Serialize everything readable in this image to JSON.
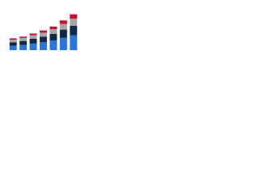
{
  "chart_data": {
    "type": "stacked-bar",
    "categories": [
      null,
      null,
      null,
      null,
      null,
      null,
      null
    ],
    "series": [
      {
        "color": "#2876dd",
        "values": [
          10,
          12,
          15,
          18,
          22,
          28,
          34
        ]
      },
      {
        "color": "#0e2a47",
        "values": [
          8,
          9,
          11,
          13,
          15,
          19,
          22
        ]
      },
      {
        "color": "#a6a6a6",
        "values": [
          6,
          7,
          8,
          9,
          11,
          13,
          16
        ]
      },
      {
        "color": "#c8102e",
        "values": [
          3,
          3,
          4,
          5,
          6,
          8,
          10
        ]
      }
    ],
    "ylim": [
      0,
      100
    ]
  }
}
